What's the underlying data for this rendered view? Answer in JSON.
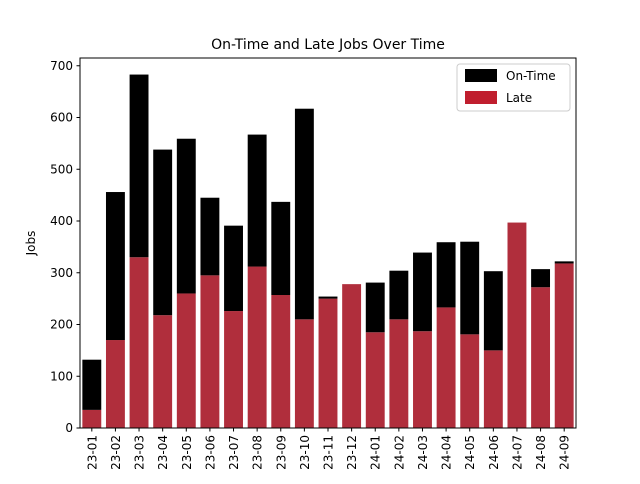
{
  "chart_data": {
    "type": "bar",
    "stacked": true,
    "title": "On-Time and Late Jobs Over Time",
    "xlabel": "",
    "ylabel": "Jobs",
    "ylim": [
      0,
      715
    ],
    "yticks": [
      0,
      100,
      200,
      300,
      400,
      500,
      600,
      700
    ],
    "grid": false,
    "legend_position": "top-right",
    "categories": [
      "23-01",
      "23-02",
      "23-03",
      "23-04",
      "23-05",
      "23-06",
      "23-07",
      "23-08",
      "23-09",
      "23-10",
      "23-11",
      "23-12",
      "24-01",
      "24-02",
      "24-03",
      "24-04",
      "24-05",
      "24-06",
      "24-07",
      "24-08",
      "24-09"
    ],
    "series": [
      {
        "name": "Late",
        "color": "#b02e3c",
        "values": [
          35,
          170,
          330,
          218,
          260,
          295,
          226,
          312,
          257,
          210,
          250,
          278,
          185,
          210,
          187,
          233,
          181,
          150,
          397,
          272,
          318
        ]
      },
      {
        "name": "On-Time",
        "color": "#000000",
        "values": [
          97,
          286,
          353,
          320,
          299,
          150,
          165,
          255,
          180,
          407,
          4,
          0,
          96,
          94,
          152,
          126,
          179,
          153,
          0,
          35,
          4
        ]
      }
    ],
    "legend": [
      {
        "label": "On-Time",
        "color": "#000000"
      },
      {
        "label": "Late",
        "color": "#c01e2e"
      }
    ]
  }
}
